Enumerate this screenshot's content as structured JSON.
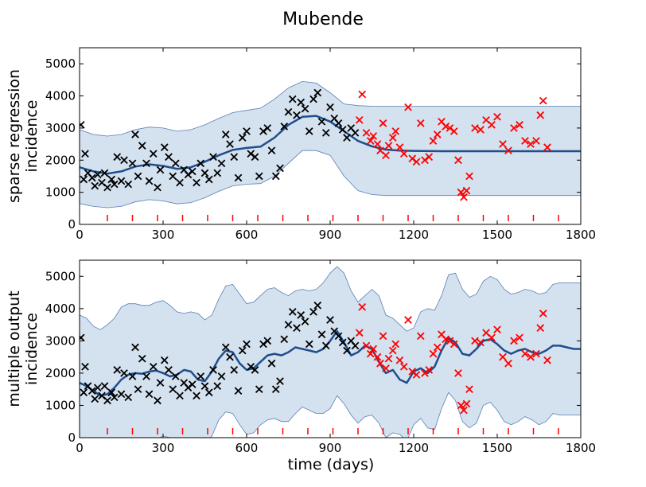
{
  "figure": {
    "title": "Mubende",
    "xlabel": "time (days)"
  },
  "chart_data": [
    {
      "type": "scatter",
      "title": "",
      "ylabel_lines": [
        "sparse regression",
        "incidence"
      ],
      "xlabel": "",
      "xlim": [
        0,
        1800
      ],
      "ylim": [
        0,
        5500
      ],
      "x_ticks": [
        0,
        300,
        600,
        900,
        1200,
        1500,
        1800
      ],
      "y_ticks": [
        0,
        1000,
        2000,
        3000,
        4000,
        5000
      ],
      "grid": false,
      "inducing_inputs": [
        100,
        190,
        280,
        370,
        460,
        550,
        640,
        730,
        820,
        910,
        1000,
        1090,
        1180,
        1270,
        1360,
        1450,
        1540,
        1630,
        1720
      ],
      "mean_curve": {
        "name": "",
        "color": "#1f4e8c",
        "x": [
          0,
          50,
          100,
          150,
          200,
          250,
          300,
          350,
          400,
          450,
          500,
          550,
          600,
          650,
          700,
          750,
          800,
          850,
          900,
          950,
          1000,
          1050,
          1100,
          1150,
          1200,
          1300,
          1400,
          1500,
          1600,
          1700,
          1800
        ],
        "y": [
          1780,
          1650,
          1580,
          1650,
          1800,
          1870,
          1820,
          1730,
          1780,
          1950,
          2150,
          2320,
          2380,
          2420,
          2700,
          3100,
          3350,
          3380,
          3200,
          2900,
          2600,
          2430,
          2330,
          2300,
          2290,
          2280,
          2280,
          2280,
          2280,
          2280,
          2280
        ]
      },
      "band": {
        "color": "#d4e1ef",
        "edge_color": "#5a7fb5",
        "upper": [
          2950,
          2800,
          2750,
          2800,
          2950,
          3030,
          3000,
          2900,
          2950,
          3100,
          3300,
          3480,
          3550,
          3620,
          3900,
          4250,
          4450,
          4400,
          4100,
          3750,
          3700,
          3680,
          3680,
          3680,
          3680,
          3680,
          3680,
          3680,
          3680,
          3680,
          3680
        ],
        "lower": [
          650,
          560,
          520,
          560,
          700,
          770,
          730,
          640,
          680,
          830,
          1030,
          1200,
          1250,
          1270,
          1500,
          1900,
          2300,
          2300,
          2150,
          1500,
          1050,
          930,
          900,
          900,
          900,
          900,
          900,
          900,
          900,
          900,
          900
        ]
      },
      "observed": {
        "name": "",
        "color": "#000000",
        "x": [
          5,
          15,
          20,
          30,
          45,
          55,
          65,
          80,
          90,
          100,
          115,
          125,
          135,
          150,
          160,
          175,
          190,
          200,
          210,
          225,
          240,
          250,
          265,
          280,
          290,
          305,
          320,
          335,
          345,
          360,
          375,
          390,
          405,
          420,
          435,
          450,
          465,
          480,
          495,
          510,
          525,
          540,
          555,
          570,
          585,
          600,
          615,
          630,
          645,
          660,
          675,
          690,
          705,
          720,
          735,
          750,
          765,
          780,
          795,
          810,
          825,
          840,
          855,
          870,
          885,
          900,
          915,
          930,
          945,
          960,
          975,
          990
        ],
        "y": [
          3100,
          1400,
          2200,
          1600,
          1450,
          1200,
          1550,
          1300,
          1600,
          1150,
          1400,
          1250,
          2100,
          1350,
          2000,
          1250,
          1900,
          2800,
          1500,
          2450,
          1900,
          1350,
          2200,
          1150,
          1700,
          2400,
          2100,
          1500,
          1900,
          1300,
          1700,
          1550,
          1650,
          1300,
          1900,
          1600,
          1400,
          2100,
          1600,
          1900,
          2800,
          2500,
          2100,
          1450,
          2700,
          2900,
          2200,
          2100,
          1500,
          2900,
          3000,
          2300,
          1500,
          1750,
          3050,
          3500,
          3900,
          3400,
          3800,
          3600,
          2900,
          3900,
          4100,
          3200,
          2850,
          3650,
          3300,
          3150,
          2950,
          2700,
          3000,
          2850
        ]
      },
      "held_out": {
        "name": "",
        "color": "#ff0000",
        "x": [
          1005,
          1015,
          1030,
          1045,
          1055,
          1070,
          1080,
          1090,
          1100,
          1110,
          1125,
          1135,
          1150,
          1165,
          1180,
          1195,
          1210,
          1225,
          1240,
          1255,
          1270,
          1285,
          1300,
          1315,
          1330,
          1345,
          1360,
          1370,
          1380,
          1390,
          1400,
          1420,
          1440,
          1460,
          1480,
          1500,
          1520,
          1540,
          1560,
          1580,
          1600,
          1620,
          1640,
          1655,
          1665,
          1680
        ],
        "y": [
          3250,
          4050,
          2850,
          2600,
          2750,
          2500,
          2300,
          3150,
          2150,
          2450,
          2700,
          2900,
          2400,
          2200,
          3650,
          2050,
          1950,
          3150,
          2000,
          2100,
          2600,
          2800,
          3200,
          3050,
          3000,
          2900,
          2000,
          1000,
          850,
          1050,
          1500,
          3000,
          2950,
          3250,
          3100,
          3350,
          2500,
          2300,
          3000,
          3100,
          2600,
          2500,
          2600,
          3400,
          3850,
          2400
        ]
      }
    },
    {
      "type": "scatter",
      "title": "",
      "ylabel_lines": [
        "multiple output",
        "incidence"
      ],
      "xlabel": "time (days)",
      "xlim": [
        0,
        1800
      ],
      "ylim": [
        0,
        5500
      ],
      "x_ticks": [
        0,
        300,
        600,
        900,
        1200,
        1500,
        1800
      ],
      "y_ticks": [
        0,
        1000,
        2000,
        3000,
        4000,
        5000
      ],
      "grid": false,
      "inducing_inputs": [
        100,
        190,
        280,
        370,
        460,
        550,
        640,
        730,
        820,
        910,
        1000,
        1090,
        1180,
        1270,
        1360,
        1450,
        1540,
        1630,
        1720
      ],
      "mean_curve": {
        "name": "",
        "color": "#1f4e8c",
        "x": [
          0,
          25,
          50,
          75,
          100,
          125,
          150,
          175,
          200,
          225,
          250,
          275,
          300,
          325,
          350,
          375,
          400,
          425,
          450,
          475,
          500,
          525,
          550,
          575,
          600,
          625,
          650,
          675,
          700,
          725,
          750,
          775,
          800,
          825,
          850,
          875,
          900,
          925,
          950,
          975,
          1000,
          1025,
          1050,
          1075,
          1100,
          1125,
          1150,
          1175,
          1200,
          1225,
          1250,
          1275,
          1300,
          1325,
          1350,
          1375,
          1400,
          1425,
          1450,
          1475,
          1500,
          1525,
          1550,
          1575,
          1600,
          1625,
          1650,
          1675,
          1700,
          1725,
          1750,
          1775,
          1800
        ],
        "y": [
          1700,
          1600,
          1450,
          1300,
          1350,
          1550,
          1800,
          1950,
          2000,
          1980,
          2050,
          2080,
          2000,
          1900,
          1950,
          2100,
          2050,
          1800,
          1750,
          2050,
          2450,
          2700,
          2650,
          2300,
          2100,
          2150,
          2350,
          2550,
          2600,
          2550,
          2650,
          2800,
          2750,
          2700,
          2650,
          2750,
          3000,
          3300,
          2950,
          2550,
          2650,
          2850,
          2750,
          2350,
          2000,
          2100,
          1800,
          1700,
          2050,
          2150,
          2000,
          2200,
          2700,
          3100,
          2950,
          2600,
          2550,
          2750,
          3000,
          3050,
          2900,
          2700,
          2600,
          2700,
          2750,
          2650,
          2600,
          2700,
          2850,
          2850,
          2800,
          2750,
          2750
        ]
      },
      "band": {
        "color": "#d4e1ef",
        "edge_color": "#5a7fb5",
        "upper": [
          3800,
          3700,
          3450,
          3350,
          3500,
          3700,
          4050,
          4150,
          4150,
          4100,
          4100,
          4200,
          4250,
          4100,
          3900,
          3850,
          3900,
          3850,
          3650,
          3800,
          4300,
          4700,
          4750,
          4450,
          4150,
          4200,
          4400,
          4600,
          4650,
          4500,
          4400,
          4550,
          4600,
          4550,
          4600,
          4800,
          5100,
          5300,
          5100,
          4550,
          4200,
          4400,
          4600,
          4400,
          3800,
          3700,
          3500,
          3300,
          3400,
          3900,
          4000,
          3950,
          4400,
          5050,
          5100,
          4600,
          4350,
          4450,
          4850,
          5000,
          4900,
          4600,
          4450,
          4500,
          4600,
          4550,
          4450,
          4500,
          4750,
          4800,
          4800,
          4800,
          4800
        ],
        "lower": [
          -250,
          -250,
          -450,
          -550,
          -500,
          -350,
          -100,
          0,
          0,
          -80,
          -150,
          -50,
          50,
          0,
          -150,
          -150,
          -100,
          -100,
          -150,
          50,
          550,
          800,
          750,
          400,
          100,
          150,
          400,
          550,
          600,
          500,
          500,
          750,
          950,
          850,
          750,
          750,
          900,
          1300,
          1050,
          700,
          450,
          650,
          700,
          450,
          0,
          150,
          100,
          -100,
          400,
          600,
          300,
          250,
          900,
          1400,
          1150,
          500,
          300,
          450,
          1000,
          1100,
          850,
          500,
          400,
          500,
          650,
          550,
          400,
          500,
          750,
          700,
          700,
          700,
          700
        ]
      },
      "observed": {
        "name": "",
        "color": "#000000",
        "x": [
          5,
          15,
          20,
          30,
          45,
          55,
          65,
          80,
          90,
          100,
          115,
          125,
          135,
          150,
          160,
          175,
          190,
          200,
          210,
          225,
          240,
          250,
          265,
          280,
          290,
          305,
          320,
          335,
          345,
          360,
          375,
          390,
          405,
          420,
          435,
          450,
          465,
          480,
          495,
          510,
          525,
          540,
          555,
          570,
          585,
          600,
          615,
          630,
          645,
          660,
          675,
          690,
          705,
          720,
          735,
          750,
          765,
          780,
          795,
          810,
          825,
          840,
          855,
          870,
          885,
          900,
          915,
          930,
          945,
          960,
          975,
          990
        ],
        "y": [
          3100,
          1400,
          2200,
          1600,
          1450,
          1200,
          1550,
          1300,
          1600,
          1150,
          1400,
          1250,
          2100,
          1350,
          2000,
          1250,
          1900,
          2800,
          1500,
          2450,
          1900,
          1350,
          2200,
          1150,
          1700,
          2400,
          2100,
          1500,
          1900,
          1300,
          1700,
          1550,
          1650,
          1300,
          1900,
          1600,
          1400,
          2100,
          1600,
          1900,
          2800,
          2500,
          2100,
          1450,
          2700,
          2900,
          2200,
          2100,
          1500,
          2900,
          3000,
          2300,
          1500,
          1750,
          3050,
          3500,
          3900,
          3400,
          3800,
          3600,
          2900,
          3900,
          4100,
          3200,
          2850,
          3650,
          3300,
          3150,
          2950,
          2700,
          3000,
          2850
        ]
      },
      "held_out": {
        "name": "",
        "color": "#ff0000",
        "x": [
          1005,
          1015,
          1030,
          1045,
          1055,
          1070,
          1080,
          1090,
          1100,
          1110,
          1125,
          1135,
          1150,
          1165,
          1180,
          1195,
          1210,
          1225,
          1240,
          1255,
          1270,
          1285,
          1300,
          1315,
          1330,
          1345,
          1360,
          1370,
          1380,
          1390,
          1400,
          1420,
          1440,
          1460,
          1480,
          1500,
          1520,
          1540,
          1560,
          1580,
          1600,
          1620,
          1640,
          1655,
          1665,
          1680
        ],
        "y": [
          3250,
          4050,
          2850,
          2600,
          2750,
          2500,
          2300,
          3150,
          2150,
          2450,
          2700,
          2900,
          2400,
          2200,
          3650,
          2050,
          1950,
          3150,
          2000,
          2100,
          2600,
          2800,
          3200,
          3050,
          3000,
          2900,
          2000,
          1000,
          850,
          1050,
          1500,
          3000,
          2950,
          3250,
          3100,
          3350,
          2500,
          2300,
          3000,
          3100,
          2600,
          2500,
          2600,
          3400,
          3850,
          2400
        ]
      }
    }
  ]
}
